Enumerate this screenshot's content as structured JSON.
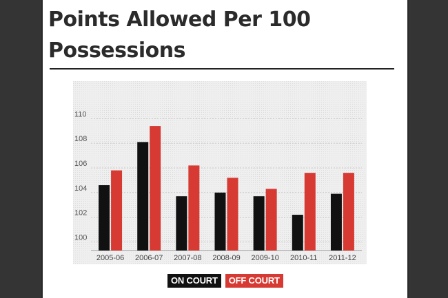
{
  "page": {
    "title": "Points Allowed Per 100 Possessions"
  },
  "colors": {
    "on_court": "#111111",
    "off_court": "#d63a33",
    "plot_bg": "#efefef",
    "grid": "#c9c9c9"
  },
  "legend": {
    "on_court_label": "ON COURT",
    "off_court_label": "OFF COURT"
  },
  "chart_data": {
    "type": "bar",
    "title": "Points Allowed Per 100 Possessions",
    "xlabel": "",
    "ylabel": "",
    "categories": [
      "2005-06",
      "2006-07",
      "2007-08",
      "2008-09",
      "2009-10",
      "2010-11",
      "2011-12"
    ],
    "series": [
      {
        "name": "ON COURT",
        "color": "#111111",
        "values": [
          104.6,
          108.1,
          103.7,
          104.0,
          103.7,
          102.2,
          103.9
        ]
      },
      {
        "name": "OFF COURT",
        "color": "#d63a33",
        "values": [
          105.8,
          109.4,
          106.2,
          105.2,
          104.3,
          105.6,
          105.6
        ]
      }
    ],
    "ylim": [
      99.3,
      110.8
    ],
    "yticks": [
      100,
      102,
      104,
      106,
      108,
      110
    ],
    "grid": true,
    "legend_position": "bottom-center"
  }
}
